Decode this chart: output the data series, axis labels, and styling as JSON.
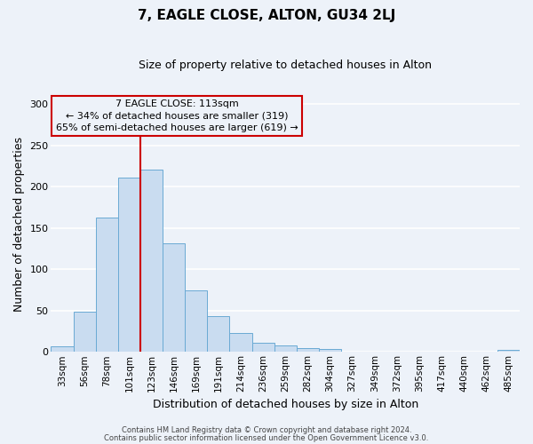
{
  "title": "7, EAGLE CLOSE, ALTON, GU34 2LJ",
  "subtitle": "Size of property relative to detached houses in Alton",
  "xlabel": "Distribution of detached houses by size in Alton",
  "ylabel": "Number of detached properties",
  "bar_labels": [
    "33sqm",
    "56sqm",
    "78sqm",
    "101sqm",
    "123sqm",
    "146sqm",
    "169sqm",
    "191sqm",
    "214sqm",
    "236sqm",
    "259sqm",
    "282sqm",
    "304sqm",
    "327sqm",
    "349sqm",
    "372sqm",
    "395sqm",
    "417sqm",
    "440sqm",
    "462sqm",
    "485sqm"
  ],
  "bar_values": [
    7,
    49,
    163,
    211,
    221,
    132,
    75,
    43,
    23,
    11,
    8,
    5,
    3,
    0,
    0,
    0,
    0,
    0,
    0,
    0,
    2
  ],
  "bar_color": "#c9dcf0",
  "bar_edgecolor": "#6aaad4",
  "vline_color": "#cc0000",
  "vline_xindex": 3.5,
  "annotation_title": "7 EAGLE CLOSE: 113sqm",
  "annotation_line1": "← 34% of detached houses are smaller (319)",
  "annotation_line2": "65% of semi-detached houses are larger (619) →",
  "annotation_box_edgecolor": "#cc0000",
  "ylim": [
    0,
    310
  ],
  "yticks": [
    0,
    50,
    100,
    150,
    200,
    250,
    300
  ],
  "footer1": "Contains HM Land Registry data © Crown copyright and database right 2024.",
  "footer2": "Contains public sector information licensed under the Open Government Licence v3.0.",
  "background_color": "#edf2f9",
  "grid_color": "#ffffff",
  "title_fontsize": 11,
  "subtitle_fontsize": 9,
  "axis_label_fontsize": 9,
  "tick_fontsize": 7.5,
  "footer_fontsize": 6,
  "annotation_fontsize": 8
}
